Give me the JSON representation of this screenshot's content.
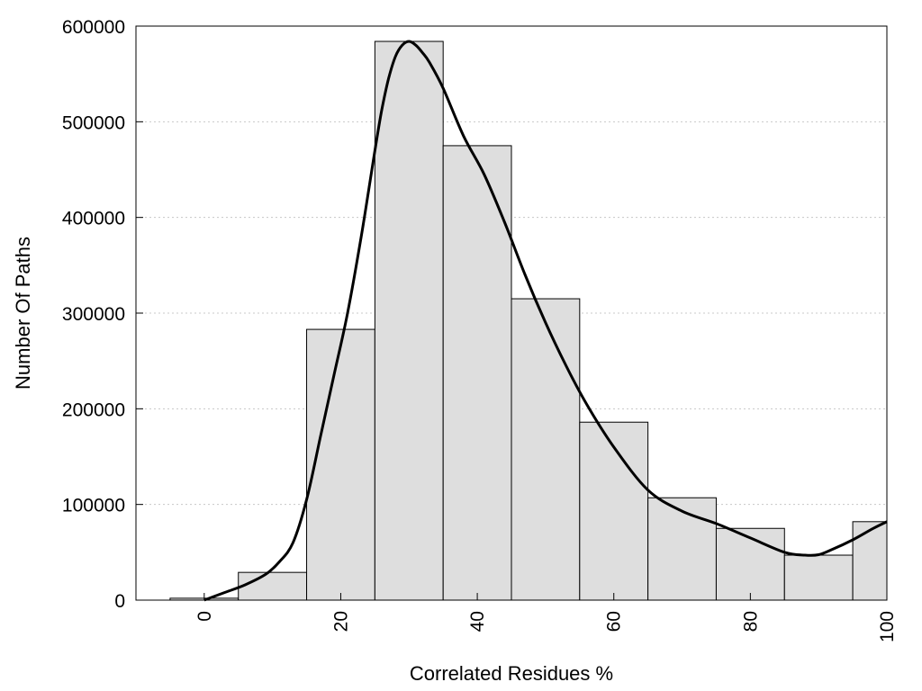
{
  "chart_data": {
    "type": "bar",
    "title": "",
    "xlabel": "Correlated Residues %",
    "ylabel": "Number Of Paths",
    "xlim": [
      -10,
      100
    ],
    "ylim": [
      0,
      600000
    ],
    "grid": "horizontal-dotted",
    "x_ticks": [
      0,
      20,
      40,
      60,
      80,
      100
    ],
    "y_ticks": [
      0,
      100000,
      200000,
      300000,
      400000,
      500000,
      600000
    ],
    "bin_width": 10,
    "bins": [
      {
        "x": 0,
        "value": 2000
      },
      {
        "x": 10,
        "value": 29000
      },
      {
        "x": 20,
        "value": 283000
      },
      {
        "x": 30,
        "value": 584000
      },
      {
        "x": 40,
        "value": 475000
      },
      {
        "x": 50,
        "value": 315000
      },
      {
        "x": 60,
        "value": 186000
      },
      {
        "x": 70,
        "value": 107000
      },
      {
        "x": 80,
        "value": 75000
      },
      {
        "x": 90,
        "value": 47000
      },
      {
        "x": 100,
        "value": 82000
      }
    ],
    "curve": {
      "x": [
        0,
        3,
        6,
        9,
        11,
        13,
        15,
        17,
        19,
        21,
        23,
        25,
        26,
        27,
        28,
        29,
        30,
        31,
        32,
        33,
        35,
        38,
        41,
        44,
        47,
        50,
        53,
        56,
        60,
        65,
        70,
        75,
        80,
        85,
        88,
        90,
        92,
        95,
        98,
        100
      ],
      "y": [
        0,
        8000,
        16000,
        27000,
        40000,
        60000,
        105000,
        170000,
        235000,
        300000,
        380000,
        470000,
        512000,
        545000,
        568000,
        580000,
        584000,
        580000,
        572000,
        562000,
        535000,
        485000,
        445000,
        395000,
        340000,
        290000,
        245000,
        205000,
        160000,
        115000,
        93000,
        80000,
        65000,
        50000,
        47000,
        47500,
        53000,
        63000,
        75000,
        82000
      ]
    }
  }
}
